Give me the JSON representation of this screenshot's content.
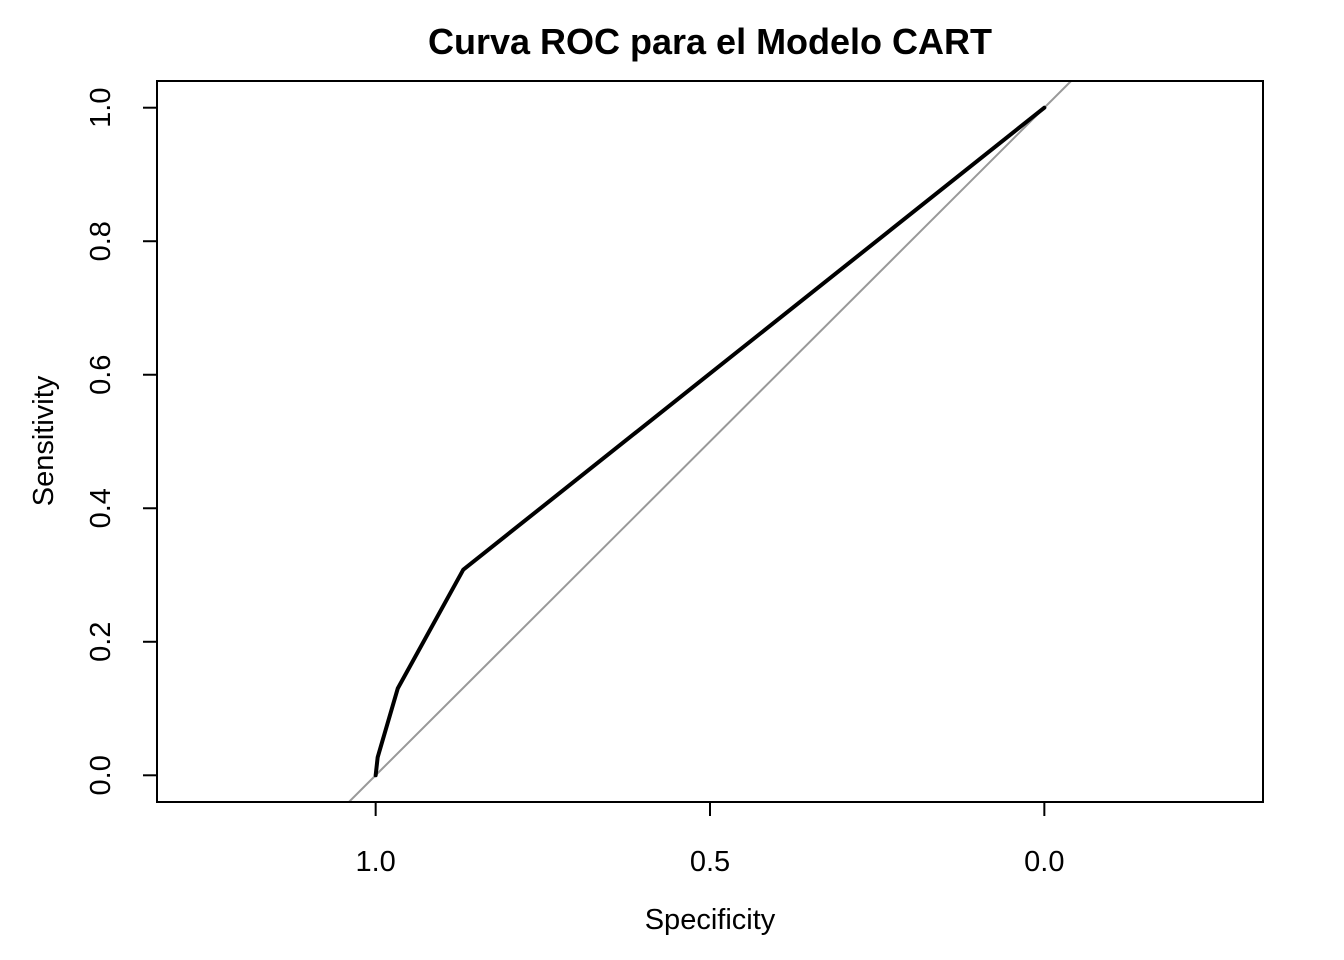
{
  "chart_data": {
    "type": "line",
    "title": "Curva ROC para el Modelo CART",
    "xlabel": "Specificity",
    "ylabel": "Sensitivity",
    "xlim": [
      1.327,
      -0.327
    ],
    "ylim": [
      -0.04,
      1.04
    ],
    "x_reversed": true,
    "x_ticks": [
      1.0,
      0.5,
      0.0
    ],
    "x_tick_labels": [
      "1.0",
      "0.5",
      "0.0"
    ],
    "y_ticks": [
      0.0,
      0.2,
      0.4,
      0.6,
      0.8,
      1.0
    ],
    "y_tick_labels": [
      "0.0",
      "0.2",
      "0.4",
      "0.6",
      "0.8",
      "1.0"
    ],
    "grid": false,
    "legend": "none",
    "series": [
      {
        "x": [
          1.0,
          0.997,
          0.967,
          0.869,
          0.0
        ],
        "y": [
          0.0,
          0.027,
          0.13,
          0.308,
          1.0
        ],
        "color": "#000000"
      }
    ],
    "reference_line": {
      "description": "diagonal chance line",
      "x": [
        1.04,
        -0.04
      ],
      "y": [
        -0.04,
        1.04
      ],
      "color": "#999999"
    }
  }
}
